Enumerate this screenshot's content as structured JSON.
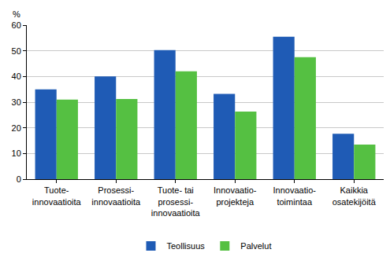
{
  "chart_data": {
    "type": "bar",
    "y_label": "%",
    "categories": [
      "Tuote-\ninnovaatioita",
      "Prosessi-\ninnovaatioita",
      "Tuote- tai\nprosessi-\ninnovaatioita",
      "Innovaatio-\nprojekteja",
      "Innovaatio-\ntoimintaa",
      "Kaikkia\nosatekijöitä"
    ],
    "series": [
      {
        "name": "Teollisuus",
        "color": "#1f5bb5",
        "values": [
          35.0,
          40.0,
          50.3,
          33.2,
          55.5,
          17.7
        ]
      },
      {
        "name": "Palvelut",
        "color": "#55c042",
        "values": [
          31.0,
          31.2,
          42.0,
          26.3,
          47.5,
          13.5
        ]
      }
    ],
    "ylim": [
      0,
      60
    ],
    "yticks": [
      0,
      10,
      20,
      30,
      40,
      50,
      60
    ],
    "grid": true,
    "legend": "bottom"
  }
}
